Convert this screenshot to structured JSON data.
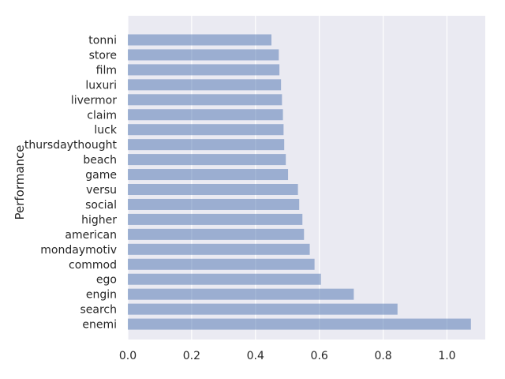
{
  "chart_data": {
    "type": "bar",
    "orientation": "horizontal",
    "title": "",
    "xlabel": "",
    "ylabel": "Performance",
    "categories": [
      "tonni",
      "store",
      "film",
      "luxuri",
      "livermor",
      "claim",
      "luck",
      "thursdaythought",
      "beach",
      "game",
      "versu",
      "social",
      "higher",
      "american",
      "mondaymotiv",
      "commod",
      "ego",
      "engin",
      "search",
      "enemi"
    ],
    "values": [
      0.45,
      0.473,
      0.475,
      0.48,
      0.483,
      0.486,
      0.488,
      0.49,
      0.495,
      0.502,
      0.533,
      0.537,
      0.547,
      0.552,
      0.57,
      0.585,
      0.605,
      0.708,
      0.845,
      1.075
    ],
    "xlim": [
      0,
      1.12
    ],
    "xticks": [
      "0.0",
      "0.2",
      "0.4",
      "0.6",
      "0.8",
      "1.0"
    ],
    "grid": true,
    "legend": "none",
    "bar_color": "#4c72b0",
    "bar_alpha": 0.5,
    "background_color": "#eaeaf2"
  }
}
